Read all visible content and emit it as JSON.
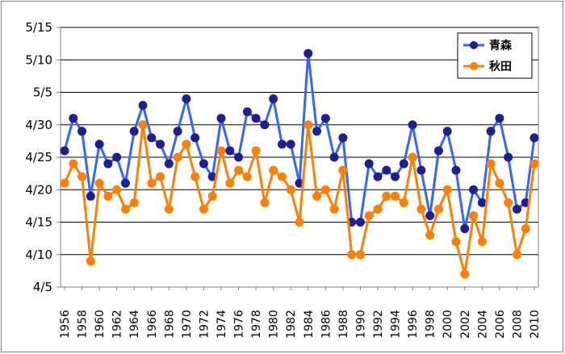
{
  "chart_data": {
    "type": "line",
    "title": "",
    "xlabel": "",
    "ylabel": "",
    "x": [
      1956,
      1957,
      1958,
      1959,
      1960,
      1961,
      1962,
      1963,
      1964,
      1965,
      1966,
      1967,
      1968,
      1969,
      1970,
      1971,
      1972,
      1973,
      1974,
      1975,
      1976,
      1977,
      1978,
      1979,
      1980,
      1981,
      1982,
      1983,
      1984,
      1985,
      1986,
      1987,
      1988,
      1989,
      1990,
      1991,
      1992,
      1993,
      1994,
      1995,
      1996,
      1997,
      1998,
      1999,
      2000,
      2001,
      2002,
      2003,
      2004,
      2005,
      2006,
      2007,
      2008,
      2009,
      2010
    ],
    "x_tick_labels": [
      "1956",
      "1958",
      "1960",
      "1962",
      "1964",
      "1966",
      "1968",
      "1970",
      "1972",
      "1974",
      "1976",
      "1978",
      "1980",
      "1982",
      "1984",
      "1986",
      "1988",
      "1990",
      "1992",
      "1994",
      "1996",
      "1998",
      "2000",
      "2002",
      "2004",
      "2006",
      "2008",
      "2010"
    ],
    "y_tick_labels": [
      "4/5",
      "4/10",
      "4/15",
      "4/20",
      "4/25",
      "4/30",
      "5/5",
      "5/10",
      "5/15"
    ],
    "y_unit": "day-of-month offset from April 1 (5/1 = 31)",
    "ylim": [
      5,
      45
    ],
    "grid": "horizontal",
    "legend_position": "top-right",
    "series": [
      {
        "name": "青森",
        "color": "#1f1f8f",
        "line_color": "#3366ff",
        "values": [
          26,
          31,
          29,
          19,
          27,
          24,
          25,
          21,
          29,
          33,
          28,
          27,
          24,
          29,
          34,
          28,
          24,
          22,
          31,
          26,
          25,
          32,
          31,
          30,
          34,
          27,
          27,
          21,
          41,
          29,
          31,
          25,
          28,
          15,
          15,
          24,
          22,
          23,
          22,
          24,
          30,
          23,
          16,
          26,
          29,
          23,
          14,
          20,
          18,
          29,
          31,
          25,
          17,
          18,
          28
        ]
      },
      {
        "name": "秋田",
        "color": "#ff8000",
        "line_color": "#ff8000",
        "values": [
          21,
          24,
          22,
          9,
          21,
          19,
          20,
          17,
          18,
          30,
          21,
          22,
          17,
          25,
          27,
          22,
          17,
          19,
          26,
          21,
          23,
          22,
          26,
          18,
          23,
          22,
          20,
          15,
          30,
          19,
          20,
          17,
          23,
          10,
          10,
          16,
          17,
          19,
          19,
          18,
          25,
          17,
          13,
          17,
          20,
          12,
          7,
          16,
          12,
          24,
          21,
          18,
          10,
          14,
          24
        ]
      }
    ]
  }
}
